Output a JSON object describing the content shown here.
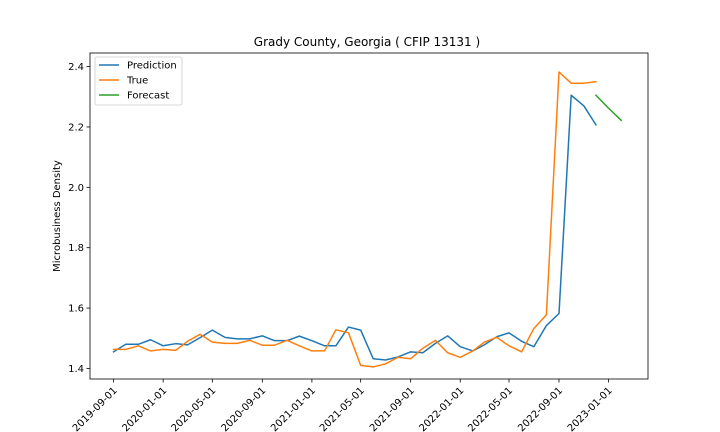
{
  "chart_data": {
    "type": "line",
    "title": "Grady County, Georgia ( CFIP 13131 )",
    "xlabel": "",
    "ylabel": "Microbusiness Density",
    "ylim": [
      1.365,
      2.445
    ],
    "xlim": [
      "2019-07-05",
      "2023-04-08"
    ],
    "x_ticks": [
      "2019-09-01",
      "2020-01-01",
      "2020-05-01",
      "2020-09-01",
      "2021-01-01",
      "2021-05-01",
      "2021-09-01",
      "2022-01-01",
      "2022-05-01",
      "2022-09-01",
      "2023-01-01"
    ],
    "y_ticks": [
      1.4,
      1.6,
      1.8,
      2.0,
      2.2,
      2.4
    ],
    "y_tick_labels": [
      "1.4",
      "1.6",
      "1.8",
      "2.0",
      "2.2",
      "2.4"
    ],
    "grid": false,
    "legend_position": "top-left",
    "series": [
      {
        "name": "Prediction",
        "color": "#1f77b4",
        "x": [
          "2019-09-01",
          "2019-10-01",
          "2019-11-01",
          "2019-12-01",
          "2020-01-01",
          "2020-02-01",
          "2020-03-01",
          "2020-04-01",
          "2020-05-01",
          "2020-06-01",
          "2020-07-01",
          "2020-08-01",
          "2020-09-01",
          "2020-10-01",
          "2020-11-01",
          "2020-12-01",
          "2021-01-01",
          "2021-02-01",
          "2021-03-01",
          "2021-04-01",
          "2021-05-01",
          "2021-06-01",
          "2021-07-01",
          "2021-08-01",
          "2021-09-01",
          "2021-10-01",
          "2021-11-01",
          "2021-12-01",
          "2022-01-01",
          "2022-02-01",
          "2022-03-01",
          "2022-04-01",
          "2022-05-01",
          "2022-06-01",
          "2022-07-01",
          "2022-08-01",
          "2022-09-01",
          "2022-10-01",
          "2022-11-01",
          "2022-12-01"
        ],
        "y": [
          1.455,
          1.48,
          1.48,
          1.495,
          1.475,
          1.482,
          1.478,
          1.502,
          1.527,
          1.503,
          1.498,
          1.498,
          1.508,
          1.492,
          1.492,
          1.507,
          1.492,
          1.475,
          1.475,
          1.537,
          1.527,
          1.432,
          1.428,
          1.438,
          1.455,
          1.452,
          1.483,
          1.508,
          1.472,
          1.458,
          1.478,
          1.505,
          1.518,
          1.49,
          1.472,
          1.542,
          1.582,
          2.305,
          2.27,
          2.207
        ]
      },
      {
        "name": "True",
        "color": "#ff7f0e",
        "x": [
          "2019-09-01",
          "2019-10-01",
          "2019-11-01",
          "2019-12-01",
          "2020-01-01",
          "2020-02-01",
          "2020-03-01",
          "2020-04-01",
          "2020-05-01",
          "2020-06-01",
          "2020-07-01",
          "2020-08-01",
          "2020-09-01",
          "2020-10-01",
          "2020-11-01",
          "2020-12-01",
          "2021-01-01",
          "2021-02-01",
          "2021-03-01",
          "2021-04-01",
          "2021-05-01",
          "2021-06-01",
          "2021-07-01",
          "2021-08-01",
          "2021-09-01",
          "2021-10-01",
          "2021-11-01",
          "2021-12-01",
          "2022-01-01",
          "2022-02-01",
          "2022-03-01",
          "2022-04-01",
          "2022-05-01",
          "2022-06-01",
          "2022-07-01",
          "2022-08-01",
          "2022-09-01",
          "2022-10-01",
          "2022-11-01",
          "2022-12-01"
        ],
        "y": [
          1.463,
          1.463,
          1.475,
          1.458,
          1.463,
          1.46,
          1.49,
          1.513,
          1.487,
          1.483,
          1.483,
          1.493,
          1.477,
          1.477,
          1.493,
          1.475,
          1.458,
          1.458,
          1.528,
          1.518,
          1.41,
          1.405,
          1.415,
          1.437,
          1.432,
          1.467,
          1.493,
          1.452,
          1.437,
          1.458,
          1.487,
          1.503,
          1.475,
          1.455,
          1.532,
          1.578,
          2.382,
          2.345,
          2.345,
          2.35
        ]
      },
      {
        "name": "Forecast",
        "color": "#2ca02c",
        "x": [
          "2022-12-01",
          "2023-01-01",
          "2023-02-01"
        ],
        "y": [
          2.305,
          2.262,
          2.222
        ]
      }
    ]
  }
}
